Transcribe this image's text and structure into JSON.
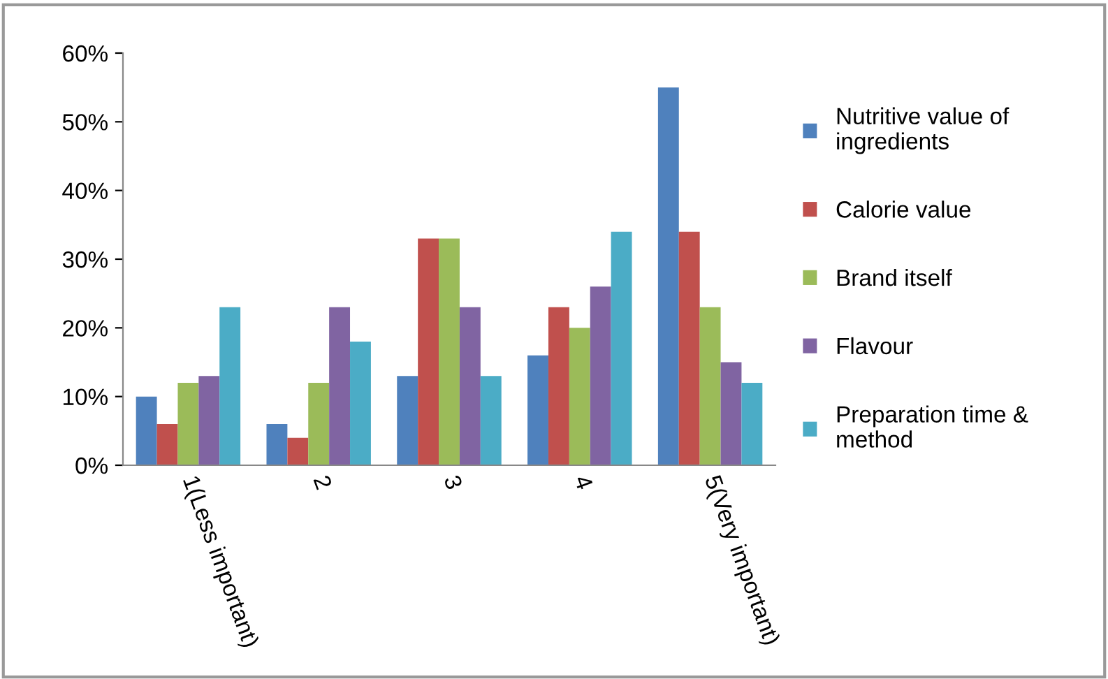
{
  "chart_data": {
    "type": "bar",
    "categories": [
      "1(Less important)",
      "2",
      "3",
      "4",
      "5(Very important)"
    ],
    "series": [
      {
        "name": "Nutritive value of ingredients",
        "color": "#4f81bd",
        "values": [
          10,
          6,
          13,
          16,
          55
        ]
      },
      {
        "name": "Calorie value",
        "color": "#c0504d",
        "values": [
          6,
          4,
          33,
          23,
          34
        ]
      },
      {
        "name": "Brand itself",
        "color": "#9bbb59",
        "values": [
          12,
          12,
          33,
          20,
          23
        ]
      },
      {
        "name": "Flavour",
        "color": "#8064a2",
        "values": [
          13,
          23,
          23,
          26,
          15
        ]
      },
      {
        "name": "Preparation time & method",
        "color": "#4bacc6",
        "values": [
          23,
          18,
          13,
          34,
          12
        ]
      }
    ],
    "ylim": [
      0,
      60
    ],
    "yticks": [
      {
        "value": 0,
        "label": "0%"
      },
      {
        "value": 10,
        "label": "10%"
      },
      {
        "value": 20,
        "label": "20%"
      },
      {
        "value": 30,
        "label": "30%"
      },
      {
        "value": 40,
        "label": "40%"
      },
      {
        "value": 50,
        "label": "50%"
      },
      {
        "value": 60,
        "label": "60%"
      }
    ],
    "grid": false,
    "legend": "right"
  }
}
